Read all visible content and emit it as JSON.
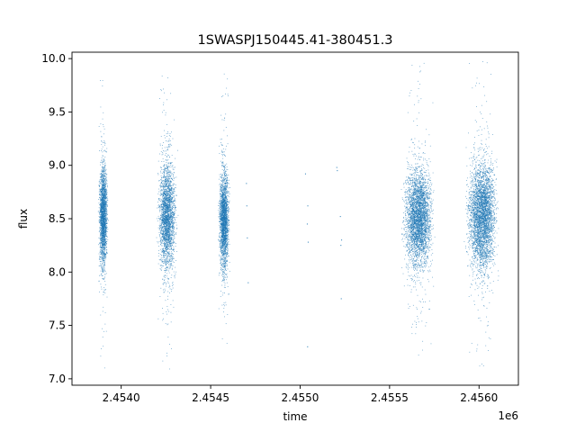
{
  "chart_data": {
    "type": "scatter",
    "title": "1SWASPJ150445.41-380451.3",
    "xlabel": "time",
    "ylabel": "flux",
    "x_offset_label": "1e6",
    "xlim": [
      2453725,
      2456220
    ],
    "ylim": [
      6.94,
      10.06
    ],
    "x_ticks": [
      2.454,
      2.4545,
      2.455,
      2.4555,
      2.456
    ],
    "x_tick_labels": [
      "2.4540",
      "2.4545",
      "2.4550",
      "2.4555",
      "2.4560"
    ],
    "y_ticks": [
      7.0,
      7.5,
      8.0,
      8.5,
      9.0,
      9.5,
      10.0
    ],
    "y_tick_labels": [
      "7.0",
      "7.5",
      "8.0",
      "8.5",
      "9.0",
      "9.5",
      "10.0"
    ],
    "point_color": "#1f77b4",
    "grid": false,
    "legend": "none",
    "series": [
      {
        "seasons": [
          {
            "x_range": [
              2453870,
              2453930
            ],
            "center": 8.52,
            "spread": 0.22,
            "count": 2200,
            "y_range": [
              7.08,
              9.95
            ]
          },
          {
            "x_range": [
              2454195,
              2454320
            ],
            "center": 8.52,
            "spread": 0.24,
            "count": 2600,
            "y_range": [
              7.08,
              9.95
            ]
          },
          {
            "x_range": [
              2454540,
              2454610
            ],
            "center": 8.48,
            "spread": 0.22,
            "count": 2300,
            "y_range": [
              7.12,
              10.0
            ]
          },
          {
            "x_range": [
              2455560,
              2455760
            ],
            "center": 8.5,
            "spread": 0.22,
            "count": 3600,
            "y_range": [
              7.15,
              9.96
            ]
          },
          {
            "x_range": [
              2455915,
              2456120
            ],
            "center": 8.52,
            "spread": 0.24,
            "count": 3800,
            "y_range": [
              7.1,
              10.0
            ]
          }
        ],
        "sparse_points": [
          {
            "x": 2454700,
            "y": 8.83
          },
          {
            "x": 2454702,
            "y": 8.62
          },
          {
            "x": 2454705,
            "y": 8.32
          },
          {
            "x": 2454710,
            "y": 7.9
          },
          {
            "x": 2455030,
            "y": 8.92
          },
          {
            "x": 2455040,
            "y": 8.45
          },
          {
            "x": 2455043,
            "y": 8.62
          },
          {
            "x": 2455045,
            "y": 8.28
          },
          {
            "x": 2455042,
            "y": 7.3
          },
          {
            "x": 2455205,
            "y": 8.98
          },
          {
            "x": 2455208,
            "y": 8.95
          },
          {
            "x": 2455225,
            "y": 8.52
          },
          {
            "x": 2455228,
            "y": 8.25
          },
          {
            "x": 2455230,
            "y": 7.75
          },
          {
            "x": 2455232,
            "y": 8.3
          }
        ]
      }
    ]
  }
}
